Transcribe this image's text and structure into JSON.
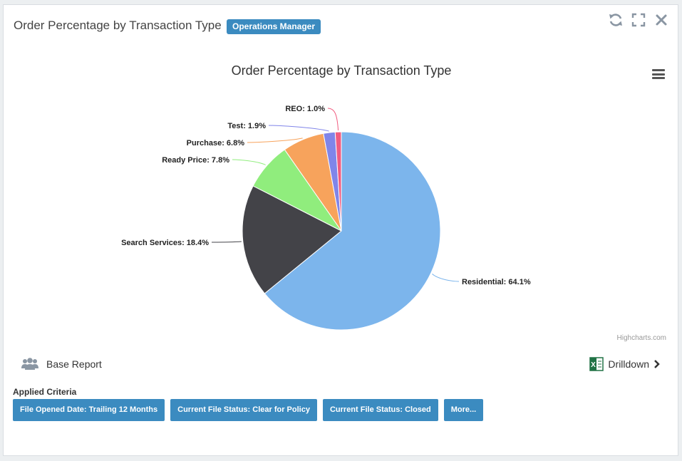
{
  "header": {
    "title": "Order Percentage by Transaction Type",
    "badge": "Operations Manager"
  },
  "chart_data": {
    "type": "pie",
    "title": "Order Percentage by Transaction Type",
    "credits": "Highcharts.com",
    "categories": [
      "Residential",
      "Search Services",
      "Ready Price",
      "Purchase",
      "Test",
      "REO"
    ],
    "values": [
      64.1,
      18.4,
      7.8,
      6.8,
      1.9,
      1.0
    ],
    "labels": [
      "Residential: 64.1%",
      "Search Services: 18.4%",
      "Ready Price: 7.8%",
      "Purchase: 6.8%",
      "Test: 1.9%",
      "REO: 1.0%"
    ],
    "colors": [
      "#7cb5ec",
      "#434348",
      "#90ed7d",
      "#f7a35c",
      "#8085e9",
      "#f15c80"
    ]
  },
  "footer": {
    "base_report": "Base Report",
    "drilldown": "Drilldown",
    "criteria_label": "Applied Criteria",
    "criteria": [
      "File Opened Date: Trailing 12 Months",
      "Current File Status: Clear for Policy",
      "Current File Status: Closed",
      "More..."
    ]
  }
}
